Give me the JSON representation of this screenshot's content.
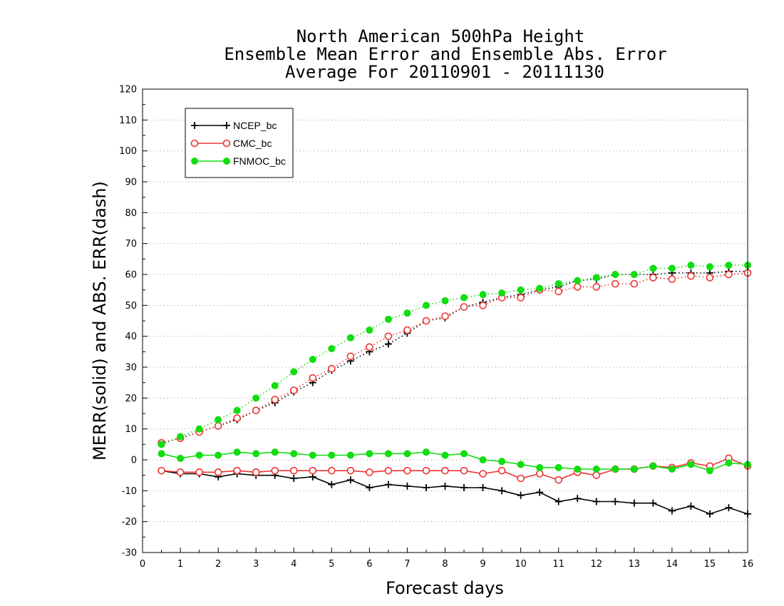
{
  "title_lines": [
    "North American 500hPa Height",
    "Ensemble Mean Error and Ensemble Abs. Error",
    "Average For 20110901 - 20111130"
  ],
  "chart_data": {
    "type": "line",
    "xlabel": "Forecast days",
    "ylabel": "MERR(solid) and ABS. ERR(dash)",
    "xlim": [
      0,
      16
    ],
    "ylim": [
      -30,
      120
    ],
    "x_ticks": [
      0,
      1,
      2,
      3,
      4,
      5,
      6,
      7,
      8,
      9,
      10,
      11,
      12,
      13,
      14,
      15,
      16
    ],
    "y_ticks": [
      -30,
      -20,
      -10,
      0,
      10,
      20,
      30,
      40,
      50,
      60,
      70,
      80,
      90,
      100,
      110,
      120
    ],
    "grid": "horizontal dotted",
    "legend_position": "top-left",
    "x": [
      0.5,
      1,
      1.5,
      2,
      2.5,
      3,
      3.5,
      4,
      4.5,
      5,
      5.5,
      6,
      6.5,
      7,
      7.5,
      8,
      8.5,
      9,
      9.5,
      10,
      10.5,
      11,
      11.5,
      12,
      12.5,
      13,
      13.5,
      14,
      14.5,
      15,
      15.5,
      16
    ],
    "series": [
      {
        "name": "NCEP_bc",
        "color": "#000000",
        "marker": "plus",
        "mean_error": [
          -3.5,
          -4.5,
          -4.5,
          -5.5,
          -4.5,
          -5,
          -5,
          -6,
          -5.5,
          -8,
          -6.5,
          -9,
          -8,
          -8.5,
          -9,
          -8.5,
          -9,
          -9,
          -10,
          -11.5,
          -10.5,
          -13.5,
          -12.5,
          -13.5,
          -13.5,
          -14,
          -14,
          -16.5,
          -15,
          -17.5,
          -15.5,
          -17.5
        ],
        "abs_error": [
          5.5,
          7,
          9,
          11,
          13,
          16,
          18.5,
          22,
          25,
          29,
          32,
          35,
          37.5,
          41,
          45,
          46,
          49.5,
          51,
          52.5,
          53.5,
          55,
          56,
          58,
          58.5,
          60,
          60,
          60,
          60.5,
          60.5,
          60.5,
          61,
          61
        ]
      },
      {
        "name": "CMC_bc",
        "color": "#ee3333",
        "marker": "open-circle",
        "mean_error": [
          -3.5,
          -4,
          -4,
          -4,
          -3.5,
          -4,
          -3.5,
          -3.5,
          -3.5,
          -3.5,
          -3.5,
          -4,
          -3.5,
          -3.5,
          -3.5,
          -3.5,
          -3.5,
          -4.5,
          -3.5,
          -6,
          -4.5,
          -6.5,
          -4,
          -5,
          -3,
          -3,
          -2,
          -2.5,
          -1,
          -2,
          0.5,
          -2
        ],
        "abs_error": [
          5.5,
          7,
          9,
          11,
          13.5,
          16,
          19.5,
          22.5,
          26.5,
          29.5,
          33.5,
          36.5,
          40,
          42,
          45,
          46.5,
          49.5,
          50,
          52.5,
          52.5,
          55,
          54.5,
          56,
          56,
          57,
          57,
          59,
          58.5,
          59.5,
          59,
          60,
          60.5
        ]
      },
      {
        "name": "FNMOC_bc",
        "color": "#11dd11",
        "marker": "filled-circle",
        "mean_error": [
          2,
          0.5,
          1.5,
          1.5,
          2.5,
          2,
          2.5,
          2,
          1.5,
          1.5,
          1.5,
          2,
          2,
          2,
          2.5,
          1.5,
          2,
          0,
          -0.5,
          -1.5,
          -2.5,
          -2.5,
          -3,
          -3,
          -3,
          -3,
          -2,
          -3,
          -1.5,
          -3.5,
          -1,
          -1.5
        ],
        "abs_error": [
          5,
          7.5,
          10,
          13,
          16,
          20,
          24,
          28.5,
          32.5,
          36,
          39.5,
          42,
          45.5,
          47.5,
          50,
          51.5,
          52.5,
          53.5,
          54,
          55,
          55.5,
          57,
          58,
          59,
          60,
          60,
          62,
          62,
          63,
          62.5,
          63,
          63
        ]
      }
    ]
  }
}
